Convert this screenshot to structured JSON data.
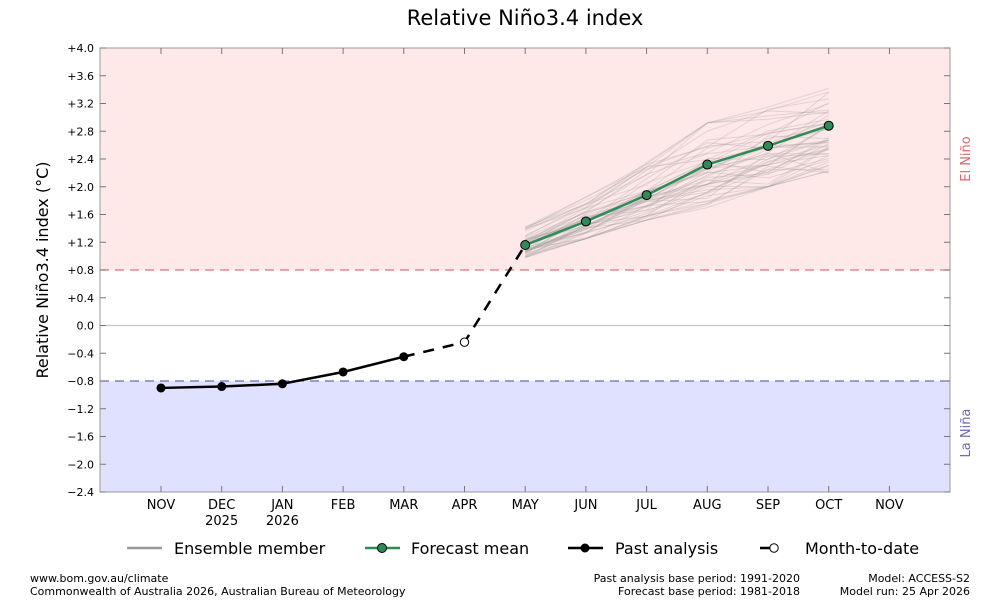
{
  "chart_data": {
    "type": "line",
    "title": "Relative Niño3.4 index",
    "ylabel": "Relative Niño3.4 index (°C)",
    "xlabel": "",
    "ylim": [
      -2.4,
      4.0
    ],
    "yticks": [
      4.0,
      3.6,
      3.2,
      2.8,
      2.4,
      2.0,
      1.6,
      1.2,
      0.8,
      0.4,
      0.0,
      -0.4,
      -0.8,
      -1.2,
      -1.6,
      -2.0,
      -2.4
    ],
    "ytick_labels": [
      "+4.0",
      "+3.6",
      "+3.2",
      "+2.8",
      "+2.4",
      "+2.0",
      "+1.6",
      "+1.2",
      "+0.8",
      "+0.4",
      "0.0",
      "−0.4",
      "−0.8",
      "−1.2",
      "−1.6",
      "−2.0",
      "−2.4"
    ],
    "xticks": [
      {
        "month": "NOV",
        "year": ""
      },
      {
        "month": "DEC",
        "year": "2025"
      },
      {
        "month": "JAN",
        "year": "2026"
      },
      {
        "month": "FEB",
        "year": ""
      },
      {
        "month": "MAR",
        "year": ""
      },
      {
        "month": "APR",
        "year": ""
      },
      {
        "month": "MAY",
        "year": ""
      },
      {
        "month": "JUN",
        "year": ""
      },
      {
        "month": "JUL",
        "year": ""
      },
      {
        "month": "AUG",
        "year": ""
      },
      {
        "month": "SEP",
        "year": ""
      },
      {
        "month": "OCT",
        "year": ""
      },
      {
        "month": "NOV",
        "year": ""
      }
    ],
    "thresholds": {
      "el_nino": 0.8,
      "la_nina": -0.8
    },
    "region_labels": {
      "el_nino": "El Niño",
      "la_nina": "La Niña"
    },
    "colors": {
      "el_nino_fill": "#ffe8e8",
      "la_nina_fill": "#e0e0ff",
      "el_nino_line": "#e87070",
      "la_nina_line": "#6b6bb5",
      "el_nino_text": "#e06666",
      "la_nina_text": "#6b6bb5",
      "forecast_mean": "#2e8b57",
      "ensemble": "#999999",
      "past": "#000000"
    },
    "series": [
      {
        "name": "Past analysis",
        "x": [
          0,
          1,
          2,
          3,
          4
        ],
        "values": [
          -0.9,
          -0.88,
          -0.84,
          -0.67,
          -0.45
        ]
      },
      {
        "name": "Month-to-date",
        "x": [
          4,
          5,
          6
        ],
        "values": [
          -0.45,
          -0.24,
          1.16
        ]
      },
      {
        "name": "Forecast mean",
        "x": [
          6,
          7,
          8,
          9,
          10,
          11
        ],
        "values": [
          1.16,
          1.5,
          1.88,
          2.32,
          2.59,
          2.88
        ]
      },
      {
        "name": "Ensemble member",
        "x": [
          6,
          7,
          8,
          9,
          10,
          11
        ],
        "range_low": [
          0.98,
          1.25,
          1.52,
          1.7,
          2.0,
          2.2
        ],
        "range_high": [
          1.42,
          1.85,
          2.35,
          2.92,
          3.15,
          3.45
        ]
      }
    ],
    "legend": {
      "placement": "bottom",
      "entries": [
        "Ensemble member",
        "Forecast mean",
        "Past analysis",
        "Month-to-date"
      ]
    }
  },
  "footer": {
    "left_line1": "www.bom.gov.au/climate",
    "left_line2": "Commonwealth of Australia 2026, Australian Bureau of Meteorology",
    "mid_line1": "Past analysis base period: 1991-2020",
    "mid_line2": "Forecast base period: 1981-2018",
    "right_line1": "Model: ACCESS-S2",
    "right_line2": "Model run: 25 Apr 2026"
  }
}
